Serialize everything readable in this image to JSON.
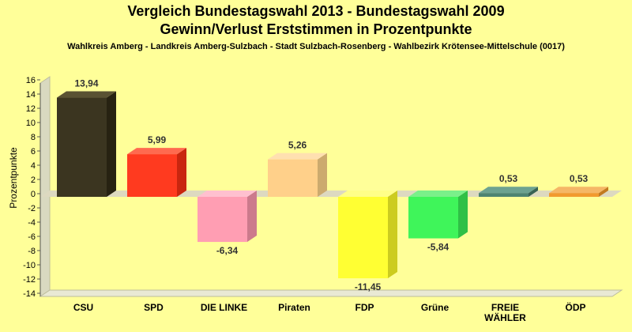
{
  "chart_data": {
    "type": "bar",
    "title": "Vergleich Bundestagswahl 2013 - Bundestagswahl 2009",
    "subtitle": "Gewinn/Verlust Erststimmen in Prozentpunkte",
    "caption": "Wahlkreis Amberg - Landkreis Amberg-Sulzbach - Stadt Sulzbach-Rosenberg - Wahlbezirk Krötensee-Mittelschule (0017)",
    "xlabel": "",
    "ylabel": "Prozentpunkte",
    "ylim": [
      -14,
      16
    ],
    "yticks": [
      "16",
      "14",
      "12",
      "10",
      "8",
      "6",
      "4",
      "2",
      "0",
      "-2",
      "-4",
      "-6",
      "-8",
      "-10",
      "-12",
      "-14"
    ],
    "grid": false,
    "categories": [
      {
        "lines": [
          "CSU"
        ]
      },
      {
        "lines": [
          "SPD"
        ]
      },
      {
        "lines": [
          "DIE LINKE"
        ]
      },
      {
        "lines": [
          "Piraten"
        ]
      },
      {
        "lines": [
          "FDP"
        ]
      },
      {
        "lines": [
          "Grüne"
        ]
      },
      {
        "lines": [
          "FREIE",
          "WÄHLER"
        ]
      },
      {
        "lines": [
          "ÖDP"
        ]
      }
    ],
    "values": [
      13.94,
      5.99,
      -6.34,
      5.26,
      -11.45,
      -5.84,
      0.53,
      0.53
    ],
    "value_labels": [
      "13,94",
      "5,99",
      "-6,34",
      "5,26",
      "-11,45",
      "-5,84",
      "0,53",
      "0,53"
    ],
    "colors": [
      "#3b3520",
      "#ff3a1f",
      "#ff9eb3",
      "#ffd08a",
      "#ffff33",
      "#3ff55a",
      "#4e8472",
      "#f29a2e"
    ],
    "colors_side": [
      "#272212",
      "#c9260f",
      "#cc7a8c",
      "#ccaa6e",
      "#cccc1f",
      "#2fc046",
      "#3a6354",
      "#c27a20"
    ],
    "colors_top": [
      "#5a5233",
      "#ff6a4f",
      "#ffc0cf",
      "#ffe0b0",
      "#ffff88",
      "#7af08a",
      "#6da290",
      "#f5b766"
    ],
    "axis_colors": {
      "background": "#ffff99",
      "wall": "#d9d9c0",
      "wall_top": "#e9e9d4",
      "zero_band": "#ddd9c0"
    }
  }
}
